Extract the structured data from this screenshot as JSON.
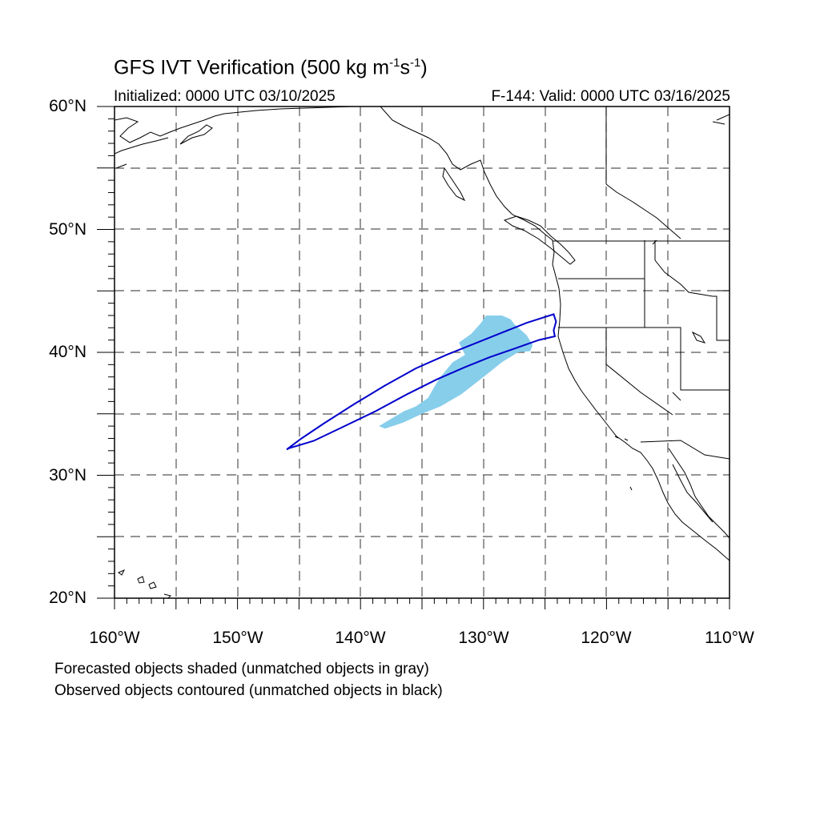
{
  "title": {
    "main": "GFS IVT Verification (500 kg m",
    "exp1": "-1",
    "mid": "s",
    "exp2": "-1",
    "end": ")"
  },
  "subtitle": {
    "left": "Initialized: 0000 UTC 03/10/2025",
    "right": "F-144: Valid: 0000 UTC 03/16/2025"
  },
  "footer": {
    "line1": "Forecasted objects shaded (unmatched objects in gray)",
    "line2": "Observed objects contoured (unmatched objects in black)"
  },
  "colors": {
    "forecast_fill": "#87CEEB",
    "observed_contour": "#0000CC",
    "coastline": "#000000",
    "grid": "#555555"
  },
  "axes": {
    "lat_labels": [
      "60°N",
      "50°N",
      "40°N",
      "30°N",
      "20°N"
    ],
    "lon_labels": [
      "160°W",
      "150°W",
      "140°W",
      "130°W",
      "120°W",
      "110°W"
    ],
    "lat_range": [
      20,
      60
    ],
    "lon_range": [
      -160,
      -110
    ],
    "grid": true
  },
  "objects": {
    "forecast_shaded": [
      [
        -138.5,
        34.0
      ],
      [
        -137.5,
        34.6
      ],
      [
        -136.5,
        35.2
      ],
      [
        -135.5,
        35.6
      ],
      [
        -134.5,
        36.3
      ],
      [
        -134.0,
        37.2
      ],
      [
        -133.5,
        38.0
      ],
      [
        -132.5,
        39.2
      ],
      [
        -131.5,
        39.8
      ],
      [
        -132.0,
        40.8
      ],
      [
        -131.0,
        41.5
      ],
      [
        -130.2,
        42.4
      ],
      [
        -129.8,
        43.0
      ],
      [
        -128.5,
        43.0
      ],
      [
        -127.8,
        42.7
      ],
      [
        -127.5,
        42.3
      ],
      [
        -126.5,
        41.4
      ],
      [
        -126.0,
        40.6
      ],
      [
        -126.2,
        40.1
      ],
      [
        -127.2,
        40.0
      ],
      [
        -128.5,
        39.2
      ],
      [
        -129.5,
        38.4
      ],
      [
        -130.5,
        37.6
      ],
      [
        -131.8,
        36.6
      ],
      [
        -133.5,
        35.6
      ],
      [
        -135.0,
        35.0
      ],
      [
        -136.5,
        34.3
      ],
      [
        -138.0,
        33.8
      ]
    ],
    "observed_contour": [
      [
        -146.0,
        32.1
      ],
      [
        -144.8,
        33.0
      ],
      [
        -143.0,
        34.2
      ],
      [
        -140.5,
        35.8
      ],
      [
        -138.0,
        37.3
      ],
      [
        -135.5,
        38.7
      ],
      [
        -133.0,
        39.8
      ],
      [
        -130.5,
        40.8
      ],
      [
        -128.5,
        41.6
      ],
      [
        -126.5,
        42.4
      ],
      [
        -124.3,
        43.1
      ],
      [
        -124.1,
        42.5
      ],
      [
        -124.3,
        41.8
      ],
      [
        -124.2,
        41.3
      ],
      [
        -125.5,
        41.0
      ],
      [
        -127.5,
        40.3
      ],
      [
        -129.5,
        39.6
      ],
      [
        -131.5,
        38.8
      ],
      [
        -133.8,
        37.8
      ],
      [
        -136.2,
        36.6
      ],
      [
        -138.8,
        35.2
      ],
      [
        -141.5,
        33.9
      ],
      [
        -143.8,
        32.8
      ],
      [
        -145.8,
        32.2
      ]
    ]
  }
}
